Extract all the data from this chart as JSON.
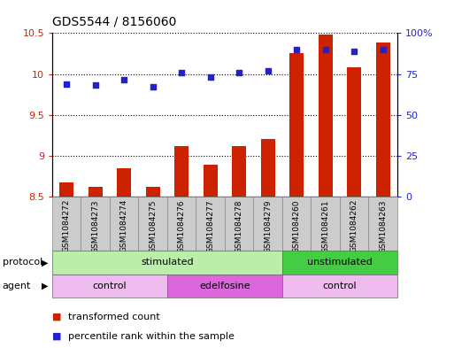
{
  "title": "GDS5544 / 8156060",
  "samples": [
    "GSM1084272",
    "GSM1084273",
    "GSM1084274",
    "GSM1084275",
    "GSM1084276",
    "GSM1084277",
    "GSM1084278",
    "GSM1084279",
    "GSM1084260",
    "GSM1084261",
    "GSM1084262",
    "GSM1084263"
  ],
  "bar_values": [
    8.67,
    8.62,
    8.85,
    8.62,
    9.12,
    8.89,
    9.12,
    9.2,
    10.25,
    10.48,
    10.08,
    10.38
  ],
  "dot_values": [
    9.88,
    9.86,
    9.93,
    9.84,
    10.02,
    9.96,
    10.02,
    10.04,
    10.3,
    10.3,
    10.28,
    10.3
  ],
  "bar_bottom": 8.5,
  "ylim_left": [
    8.5,
    10.5
  ],
  "ylim_right": [
    0,
    100
  ],
  "right_ticks": [
    0,
    25,
    50,
    75,
    100
  ],
  "right_tick_labels": [
    "0",
    "25",
    "50",
    "75",
    "100%"
  ],
  "left_ticks": [
    8.5,
    9.0,
    9.5,
    10.0,
    10.5
  ],
  "left_tick_labels": [
    "8.5",
    "9",
    "9.5",
    "10",
    "10.5"
  ],
  "bar_color": "#cc2200",
  "dot_color": "#2222cc",
  "protocol_groups": [
    {
      "label": "stimulated",
      "start": 0,
      "end": 8,
      "color": "#bbeeaa"
    },
    {
      "label": "unstimulated",
      "start": 8,
      "end": 12,
      "color": "#44cc44"
    }
  ],
  "agent_groups": [
    {
      "label": "control",
      "start": 0,
      "end": 4,
      "color": "#eebcee"
    },
    {
      "label": "edelfosine",
      "start": 4,
      "end": 8,
      "color": "#dd66dd"
    },
    {
      "label": "control",
      "start": 8,
      "end": 12,
      "color": "#eebcee"
    }
  ],
  "legend_bar_label": "transformed count",
  "legend_dot_label": "percentile rank within the sample",
  "protocol_label": "protocol",
  "agent_label": "agent",
  "xtick_bg_color": "#cccccc",
  "chart_bg_color": "#ffffff"
}
